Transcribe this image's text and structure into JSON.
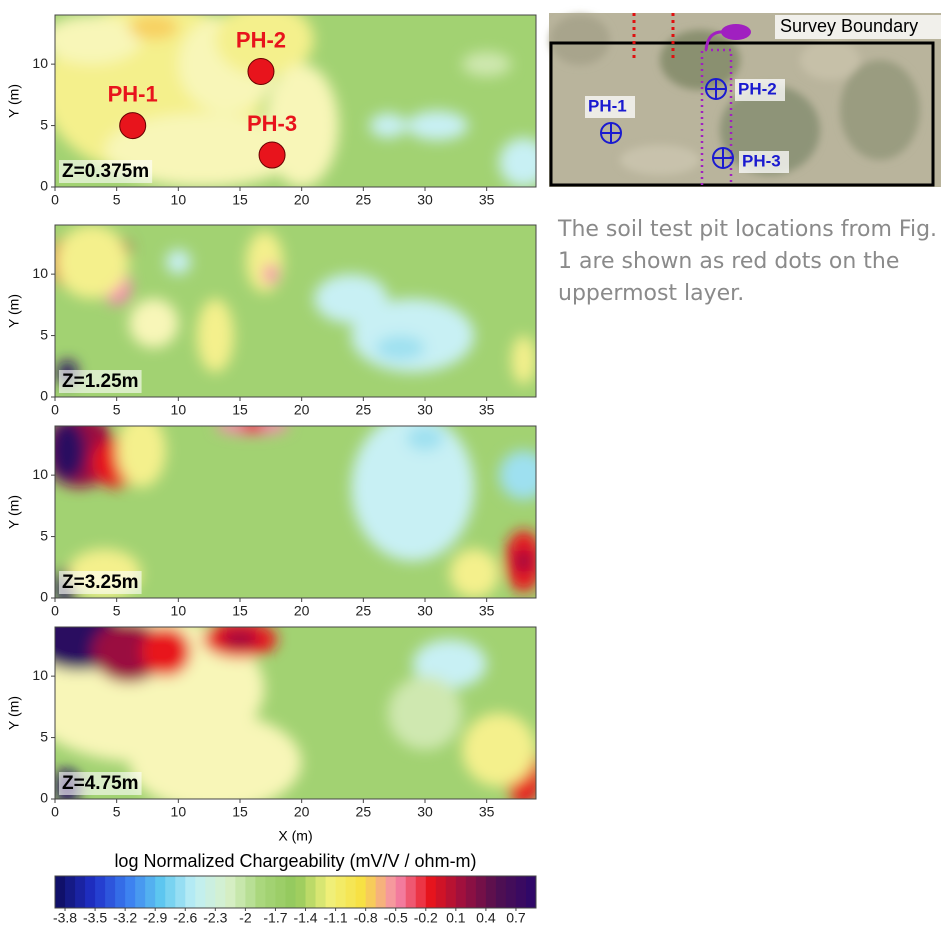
{
  "axes": {
    "xlabel": "X (m)",
    "ylabel": "Y (m)",
    "xlim": [
      0,
      39
    ],
    "ylim": [
      0,
      14
    ],
    "xticks": [
      0,
      5,
      10,
      15,
      20,
      25,
      30,
      35
    ],
    "yticks": [
      0,
      5,
      10
    ]
  },
  "panels": [
    {
      "depth_label": "Z=0.375m"
    },
    {
      "depth_label": "Z=1.25m"
    },
    {
      "depth_label": "Z=3.25m"
    },
    {
      "depth_label": "Z=4.75m"
    }
  ],
  "test_pits": [
    {
      "label": "PH-1",
      "x": 6.3,
      "y": 5,
      "color": "#e8141c"
    },
    {
      "label": "PH-2",
      "x": 16.7,
      "y": 9.4,
      "color": "#e8141c"
    },
    {
      "label": "PH-3",
      "x": 17.6,
      "y": 2.6,
      "color": "#e8141c"
    }
  ],
  "colorbar": {
    "title": "log Normalized Chargeability (mV/V / ohm-m)",
    "lim": [
      -3.9,
      0.9
    ],
    "ticks": [
      -3.8,
      -3.5,
      -3.2,
      -2.9,
      -2.6,
      -2.3,
      -2,
      -1.7,
      -1.4,
      -1.1,
      -0.8,
      -0.5,
      -0.2,
      0.1,
      0.4,
      0.7
    ],
    "colors": [
      "#10106a",
      "#2030c8",
      "#3a7cf0",
      "#5ec8f0",
      "#bfeff5",
      "#d8f0c8",
      "#a8d67a",
      "#92c85a",
      "#f0f07a",
      "#f8e040",
      "#f58ab0",
      "#e8141c",
      "#9a1040",
      "#501050",
      "#300868"
    ]
  },
  "inset": {
    "title": "Survey Boundary",
    "pits": [
      "PH-1",
      "PH-2",
      "PH-3"
    ]
  },
  "caption": "The soil test pit locations from Fig. 1 are shown as red dots on the uppermost layer."
}
